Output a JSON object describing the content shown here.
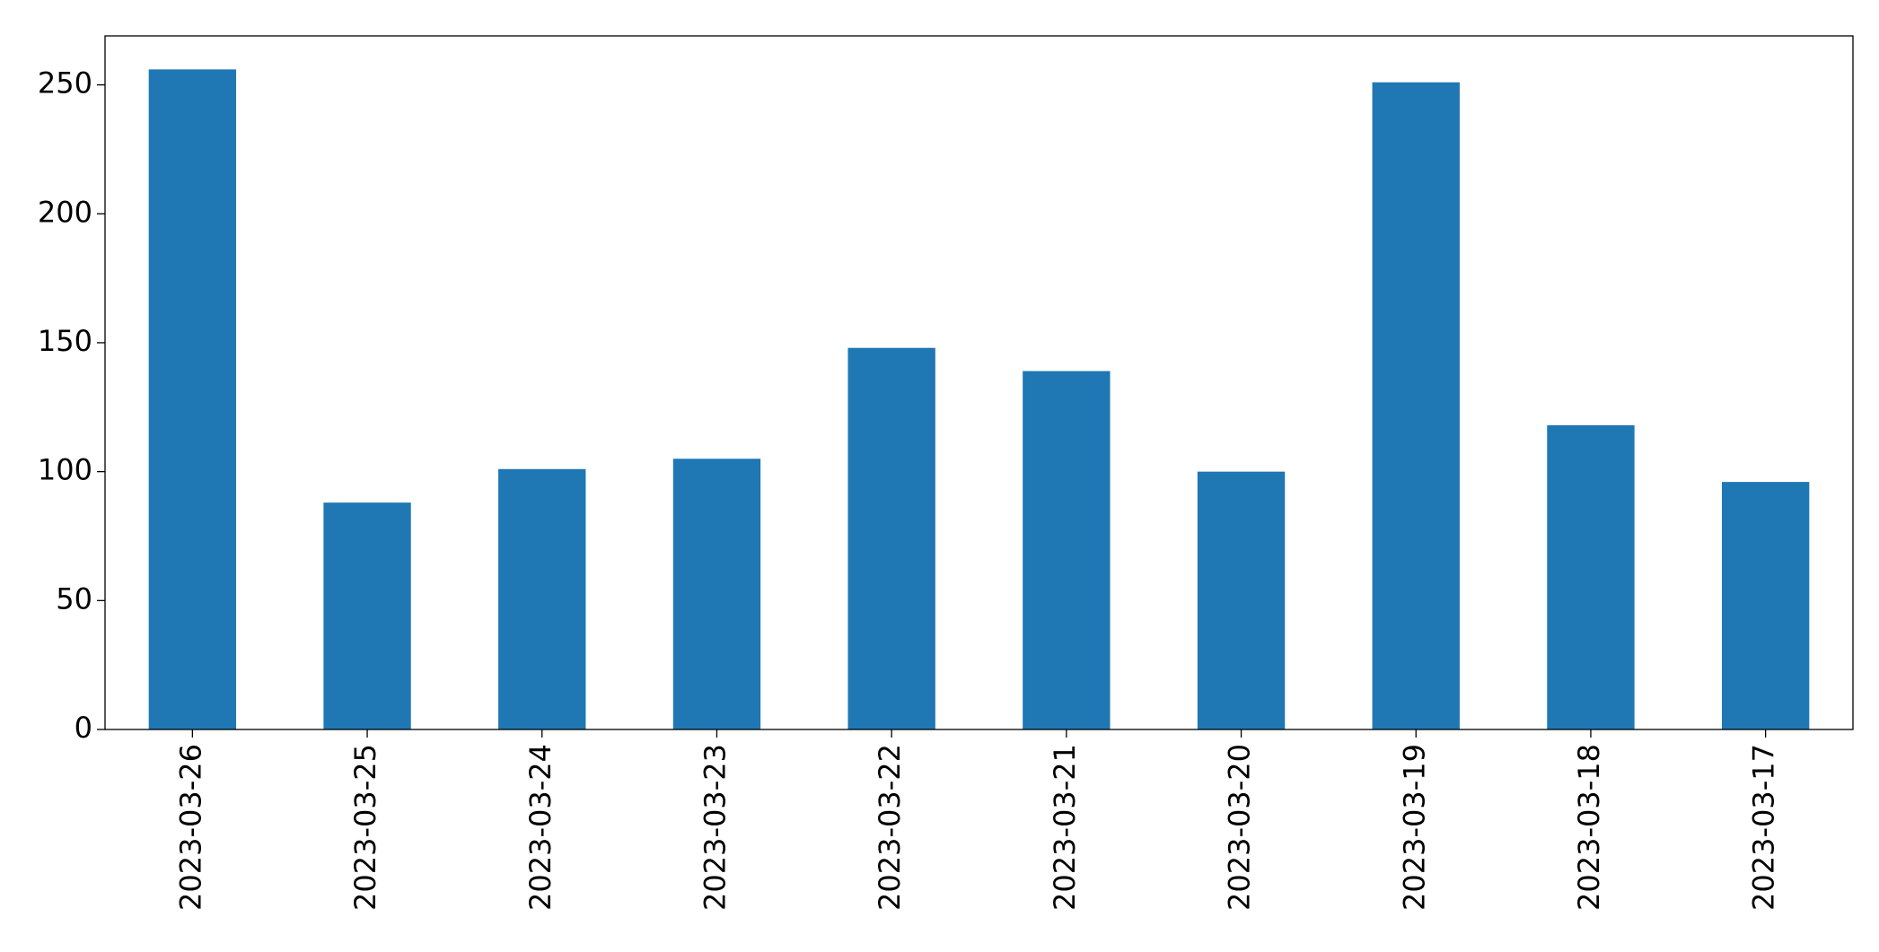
{
  "chart_data": {
    "type": "bar",
    "categories": [
      "2023-03-26",
      "2023-03-25",
      "2023-03-24",
      "2023-03-23",
      "2023-03-22",
      "2023-03-21",
      "2023-03-20",
      "2023-03-19",
      "2023-03-18",
      "2023-03-17"
    ],
    "values": [
      256,
      88,
      101,
      105,
      148,
      139,
      100,
      251,
      118,
      96
    ],
    "color": "#1f77b4",
    "ylim": [
      0,
      269
    ],
    "yticks": [
      0,
      50,
      100,
      150,
      200,
      250
    ],
    "grid": false
  }
}
